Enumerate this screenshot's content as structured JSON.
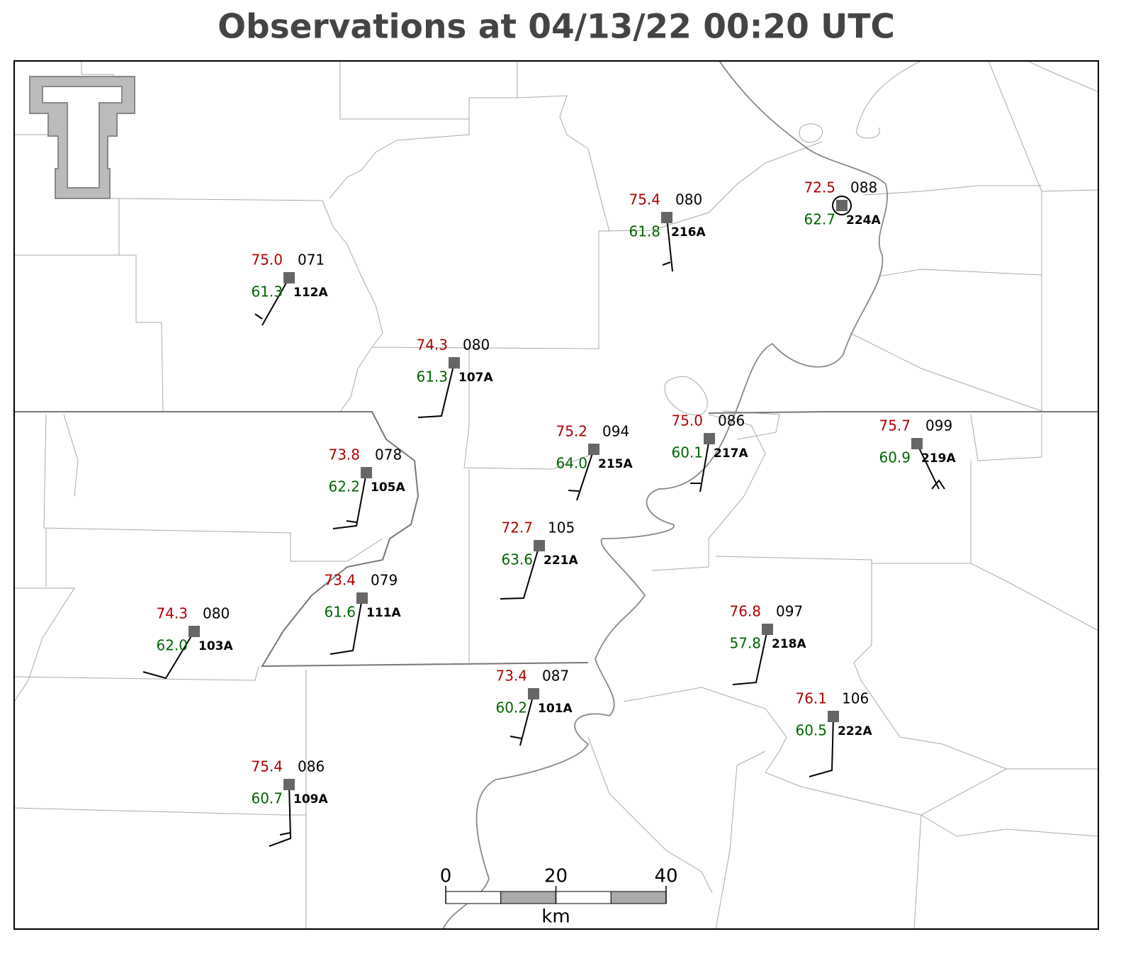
{
  "title": "Observations at 04/13/22 00:20 UTC",
  "stations": [
    {
      "id": "112A",
      "temperature": "75.0",
      "dewpoint": "61.3",
      "pressure": "071"
    },
    {
      "id": "107A",
      "temperature": "74.3",
      "dewpoint": "61.3",
      "pressure": "080"
    },
    {
      "id": "216A",
      "temperature": "75.4",
      "dewpoint": "61.8",
      "pressure": "080"
    },
    {
      "id": "224A",
      "temperature": "72.5",
      "dewpoint": "62.7",
      "pressure": "088"
    },
    {
      "id": "105A",
      "temperature": "73.8",
      "dewpoint": "62.2",
      "pressure": "078"
    },
    {
      "id": "215A",
      "temperature": "75.2",
      "dewpoint": "64.0",
      "pressure": "094"
    },
    {
      "id": "217A",
      "temperature": "75.0",
      "dewpoint": "60.1",
      "pressure": "086"
    },
    {
      "id": "219A",
      "temperature": "75.7",
      "dewpoint": "60.9",
      "pressure": "099"
    },
    {
      "id": "221A",
      "temperature": "72.7",
      "dewpoint": "63.6",
      "pressure": "105"
    },
    {
      "id": "111A",
      "temperature": "73.4",
      "dewpoint": "61.6",
      "pressure": "079"
    },
    {
      "id": "103A",
      "temperature": "74.3",
      "dewpoint": "62.0",
      "pressure": "080"
    },
    {
      "id": "218A",
      "temperature": "76.8",
      "dewpoint": "57.8",
      "pressure": "097"
    },
    {
      "id": "101A",
      "temperature": "73.4",
      "dewpoint": "60.2",
      "pressure": "087"
    },
    {
      "id": "222A",
      "temperature": "76.1",
      "dewpoint": "60.5",
      "pressure": "106"
    },
    {
      "id": "109A",
      "temperature": "75.4",
      "dewpoint": "60.7",
      "pressure": "086"
    }
  ],
  "scale_bar": {
    "ticks": [
      0,
      20,
      40
    ],
    "unit": "km"
  }
}
